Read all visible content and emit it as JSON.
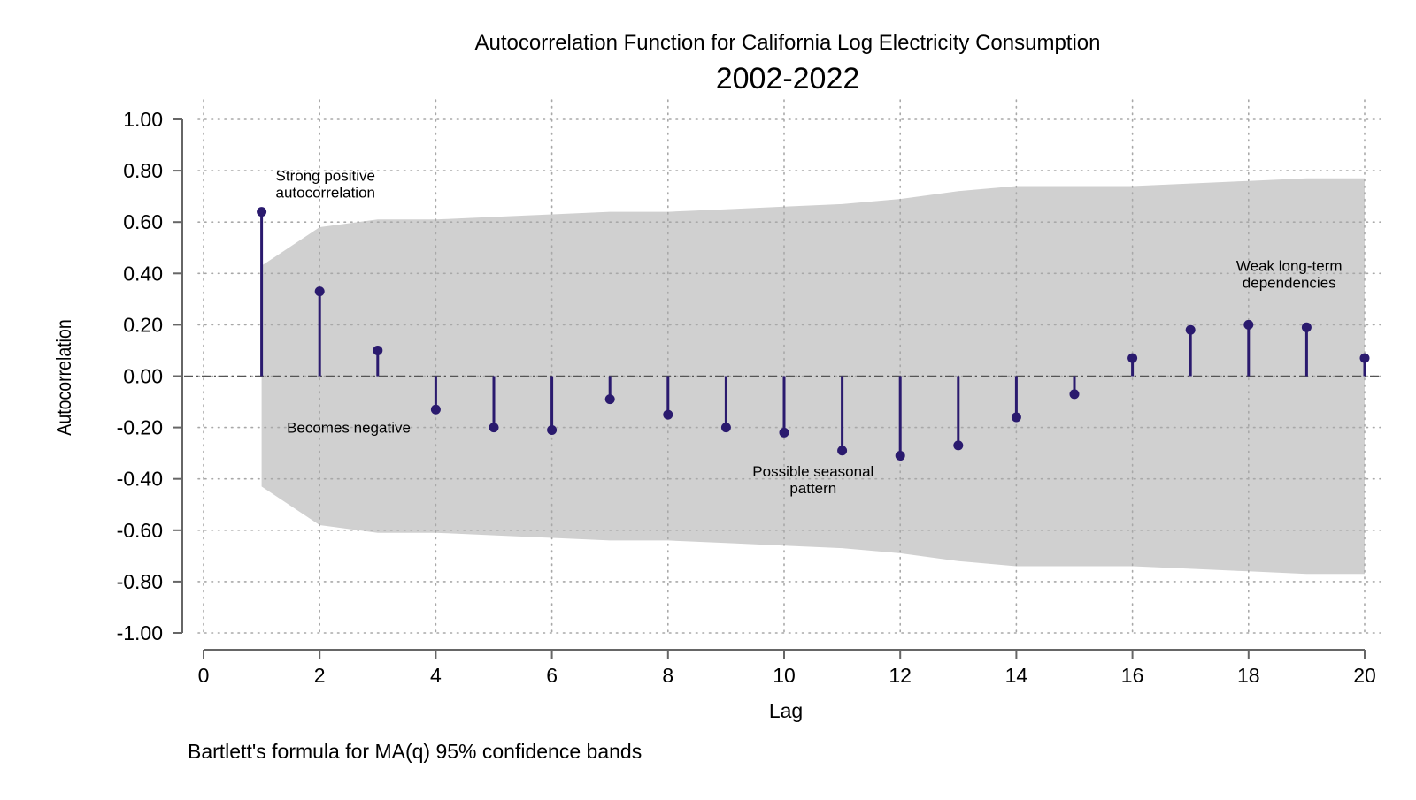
{
  "chart_data": {
    "type": "stem",
    "title": "Autocorrelation Function for California Log Electricity Consumption",
    "subtitle": "2002-2022",
    "xlabel": "Lag",
    "ylabel": "Autocorrelation",
    "note": "Bartlett's formula for MA(q) 95% confidence bands",
    "xlim": [
      0,
      20
    ],
    "ylim": [
      -1,
      1
    ],
    "x_ticks": [
      0,
      2,
      4,
      6,
      8,
      10,
      12,
      14,
      16,
      18,
      20
    ],
    "x_tick_labels": [
      "0",
      "2",
      "4",
      "6",
      "8",
      "10",
      "12",
      "14",
      "16",
      "18",
      "20"
    ],
    "y_ticks": [
      1,
      0.8,
      0.6,
      0.4,
      0.2,
      0,
      -0.2,
      -0.4,
      -0.6,
      -0.8,
      -1
    ],
    "y_tick_labels": [
      "1.00",
      "0.80",
      "0.60",
      "0.40",
      "0.20",
      "0.00",
      "-0.20",
      "-0.40",
      "-0.60",
      "-0.80",
      "-1.00"
    ],
    "grid": true,
    "series": [
      {
        "x": [
          1,
          2,
          3,
          4,
          5,
          6,
          7,
          8,
          9,
          10,
          11,
          12,
          13,
          14,
          15,
          16,
          17,
          18,
          19,
          20
        ],
        "values": [
          0.64,
          0.33,
          0.1,
          -0.13,
          -0.2,
          -0.21,
          -0.09,
          -0.15,
          -0.2,
          -0.22,
          -0.29,
          -0.31,
          -0.27,
          -0.16,
          -0.07,
          0.07,
          0.18,
          0.2,
          0.19,
          0.07
        ]
      }
    ],
    "confidence_band": {
      "x": [
        1,
        2,
        3,
        4,
        5,
        6,
        7,
        8,
        9,
        10,
        11,
        12,
        13,
        14,
        15,
        16,
        17,
        18,
        19,
        20
      ],
      "upper": [
        0.43,
        0.58,
        0.61,
        0.61,
        0.62,
        0.63,
        0.64,
        0.64,
        0.65,
        0.66,
        0.67,
        0.69,
        0.72,
        0.74,
        0.74,
        0.74,
        0.75,
        0.76,
        0.77,
        0.77
      ],
      "lower": [
        -0.43,
        -0.58,
        -0.61,
        -0.61,
        -0.62,
        -0.63,
        -0.64,
        -0.64,
        -0.65,
        -0.66,
        -0.67,
        -0.69,
        -0.72,
        -0.74,
        -0.74,
        -0.74,
        -0.75,
        -0.76,
        -0.77,
        -0.77
      ]
    },
    "annotations": [
      {
        "lines": [
          "Strong positive",
          "autocorrelation"
        ],
        "x": 2.1,
        "y": 0.76,
        "align": "center"
      },
      {
        "lines": [
          "Becomes negative"
        ],
        "x": 2.5,
        "y": -0.22,
        "align": "center"
      },
      {
        "lines": [
          "Possible seasonal",
          "pattern"
        ],
        "x": 10.5,
        "y": -0.39,
        "align": "center"
      },
      {
        "lines": [
          "Weak long-term",
          "dependencies"
        ],
        "x": 18.7,
        "y": 0.41,
        "align": "center"
      }
    ],
    "colors": {
      "stem": "#2a1a6e",
      "band": "#d0d0d0",
      "grid": "#a8a8a8",
      "axis": "#666666",
      "zero_line": "#555555"
    }
  }
}
